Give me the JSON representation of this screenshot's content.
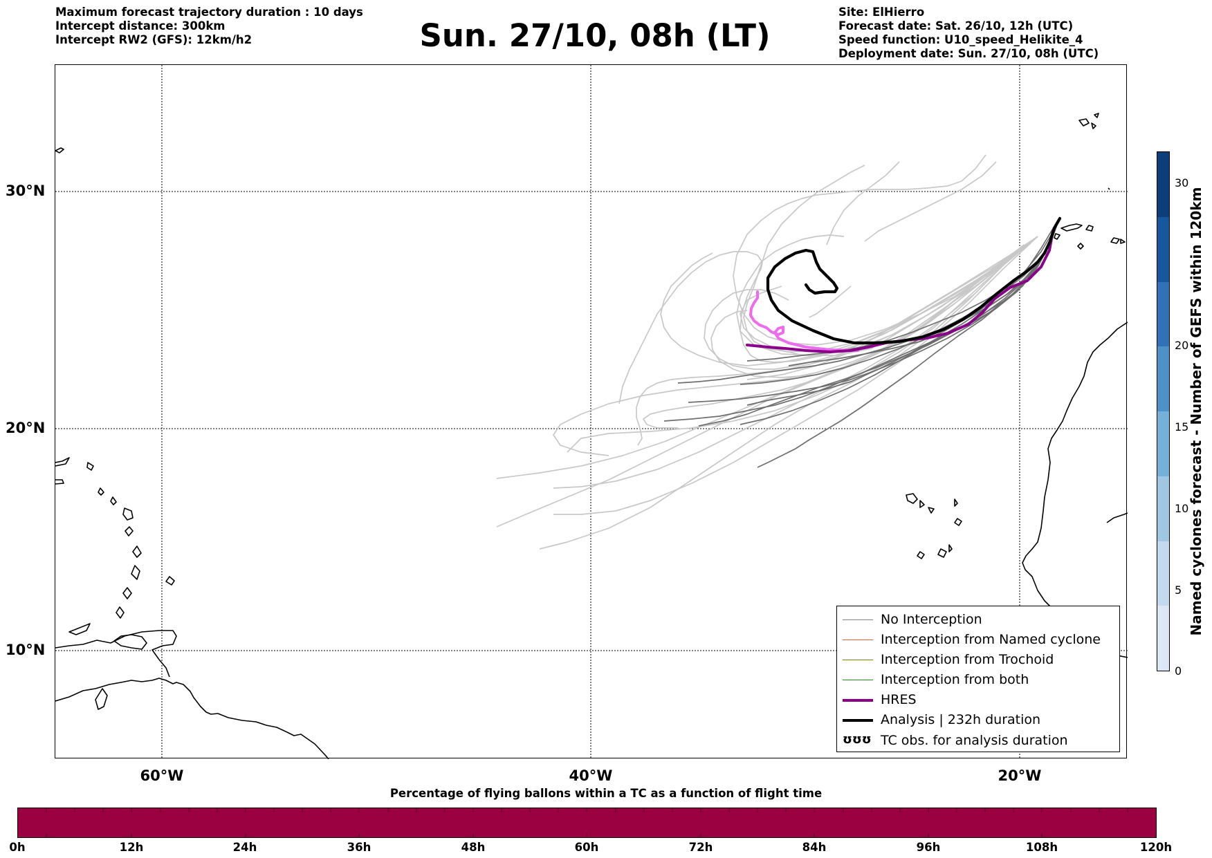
{
  "header_left": [
    "Maximum forecast trajectory duration : 10 days",
    "Intercept distance: 300km",
    "Intercept RW2 (GFS):  12km/h2"
  ],
  "title": "Sun. 27/10, 08h (LT)",
  "header_right": [
    "Site: ElHierro",
    "Forecast date: Sat. 26/10, 12h (UTC)",
    "Speed function: U10_speed_Helikite_4",
    "Deployment date: Sun. 27/10, 08h (UTC)"
  ],
  "map": {
    "lat_labels": [
      "30°N",
      "20°N",
      "10°N"
    ],
    "lon_labels": [
      "60°W",
      "40°W",
      "20°W"
    ],
    "grid": "dotted",
    "colors": {
      "ensemble_light": "#c8c8c8",
      "ensemble_dark": "#6e6e6e",
      "hres": "#8b008b",
      "hres_early": "#ee6aee",
      "analysis": "#000000",
      "coast": "#000000"
    }
  },
  "legend": {
    "items": [
      {
        "label": "No Interception",
        "color": "#808080",
        "kind": "thin"
      },
      {
        "label": "Interception from Named cyclone",
        "color": "#e8602c",
        "kind": "thin"
      },
      {
        "label": "Interception from Trochoid",
        "color": "#808000",
        "kind": "thin"
      },
      {
        "label": "Interception from both",
        "color": "#228b22",
        "kind": "thin"
      },
      {
        "label": "HRES",
        "color": "#8b008b",
        "kind": "thick"
      },
      {
        "label": "Analysis | 232h duration",
        "color": "#000000",
        "kind": "thick"
      },
      {
        "label": "TC obs. for analysis duration",
        "color": "#000000",
        "kind": "symbol",
        "symbol": "ʊʊʊ"
      }
    ]
  },
  "colorbar": {
    "title": "Named cyclones forecast - Number of GEFS within 120km",
    "ticks": [
      "0",
      "5",
      "10",
      "15",
      "20",
      "30"
    ],
    "colors": [
      "#dbe7f5",
      "#c3d9ee",
      "#9fc7e4",
      "#74b1d9",
      "#4c92c9",
      "#2f72b5",
      "#16579e",
      "#0c3e7a"
    ]
  },
  "bottom": {
    "title": "Percentage of flying ballons within a TC as a function of flight time",
    "ticks": [
      "0h",
      "12h",
      "24h",
      "36h",
      "48h",
      "60h",
      "72h",
      "84h",
      "96h",
      "108h",
      "120h"
    ],
    "bar_color": "#9b0040"
  }
}
